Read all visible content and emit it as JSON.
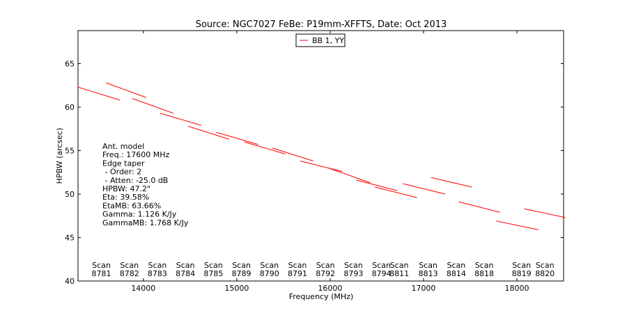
{
  "chart_data": {
    "type": "line",
    "title": "Source: NGC7027 FeBe: P19mm-XFFTS, Date: Oct 2013",
    "xlabel": "Frequency (MHz)",
    "ylabel": "HPBW (arcsec)",
    "xlim": [
      13300,
      18500
    ],
    "ylim": [
      40,
      68.8
    ],
    "x_ticks": [
      14000,
      15000,
      16000,
      17000,
      18000
    ],
    "y_ticks": [
      40,
      45,
      50,
      55,
      60,
      65
    ],
    "grid": false,
    "legend": {
      "placement": "top-center",
      "entries": [
        {
          "label": "BB 1, YY",
          "color": "#ff0000"
        }
      ]
    },
    "series_color": "#ff0000",
    "segments": [
      {
        "x": [
          13300,
          13750
        ],
        "y": [
          62.3,
          60.8
        ]
      },
      {
        "x": [
          13600,
          14030
        ],
        "y": [
          62.8,
          61.1
        ]
      },
      {
        "x": [
          13880,
          14320
        ],
        "y": [
          61.0,
          59.3
        ]
      },
      {
        "x": [
          14180,
          14620
        ],
        "y": [
          59.3,
          57.9
        ]
      },
      {
        "x": [
          14480,
          14920
        ],
        "y": [
          57.8,
          56.3
        ]
      },
      {
        "x": [
          14780,
          15230
        ],
        "y": [
          57.1,
          55.7
        ]
      },
      {
        "x": [
          15080,
          15520
        ],
        "y": [
          56.0,
          54.6
        ]
      },
      {
        "x": [
          15380,
          15820
        ],
        "y": [
          55.3,
          53.8
        ]
      },
      {
        "x": [
          15680,
          16130
        ],
        "y": [
          53.8,
          52.6
        ]
      },
      {
        "x": [
          15980,
          16430
        ],
        "y": [
          53.0,
          51.3
        ]
      },
      {
        "x": [
          16280,
          16720
        ],
        "y": [
          51.6,
          50.4
        ]
      },
      {
        "x": [
          16480,
          16930
        ],
        "y": [
          50.8,
          49.6
        ]
      },
      {
        "x": [
          16780,
          17230
        ],
        "y": [
          51.2,
          50.0
        ]
      },
      {
        "x": [
          17080,
          17520
        ],
        "y": [
          51.9,
          50.8
        ]
      },
      {
        "x": [
          17380,
          17820
        ],
        "y": [
          49.1,
          47.9
        ]
      },
      {
        "x": [
          17780,
          18230
        ],
        "y": [
          46.9,
          45.9
        ]
      },
      {
        "x": [
          18080,
          18520
        ],
        "y": [
          48.3,
          47.3
        ]
      }
    ],
    "scan_labels": [
      {
        "x": 13550,
        "label": "Scan\n8781"
      },
      {
        "x": 13850,
        "label": "Scan\n8782"
      },
      {
        "x": 14150,
        "label": "Scan\n8783"
      },
      {
        "x": 14450,
        "label": "Scan\n8784"
      },
      {
        "x": 14750,
        "label": "Scan\n8785"
      },
      {
        "x": 15050,
        "label": "Scan\n8789"
      },
      {
        "x": 15350,
        "label": "Scan\n8790"
      },
      {
        "x": 15650,
        "label": "Scan\n8791"
      },
      {
        "x": 15950,
        "label": "Scan\n8792"
      },
      {
        "x": 16250,
        "label": "Scan\n8793"
      },
      {
        "x": 16550,
        "label": "Scan\n8794"
      },
      {
        "x": 16740,
        "label": "Scan\n8811"
      },
      {
        "x": 17050,
        "label": "Scan\n8813"
      },
      {
        "x": 17350,
        "label": "Scan\n8814"
      },
      {
        "x": 17650,
        "label": "Scan\n8818"
      },
      {
        "x": 18050,
        "label": "Scan\n8819"
      },
      {
        "x": 18300,
        "label": "Scan\n8820"
      }
    ],
    "annotation": {
      "lines": [
        "Ant. model",
        "Freq.: 17600 MHz",
        "Edge taper",
        " - Order: 2",
        " - Atten: -25.0 dB",
        "HPBW: 47.2\"",
        "Eta: 39.58%",
        "EtaMB: 63.66%",
        "Gamma: 1.126 K/Jy",
        "GammaMB: 1.768 K/Jy"
      ]
    }
  }
}
